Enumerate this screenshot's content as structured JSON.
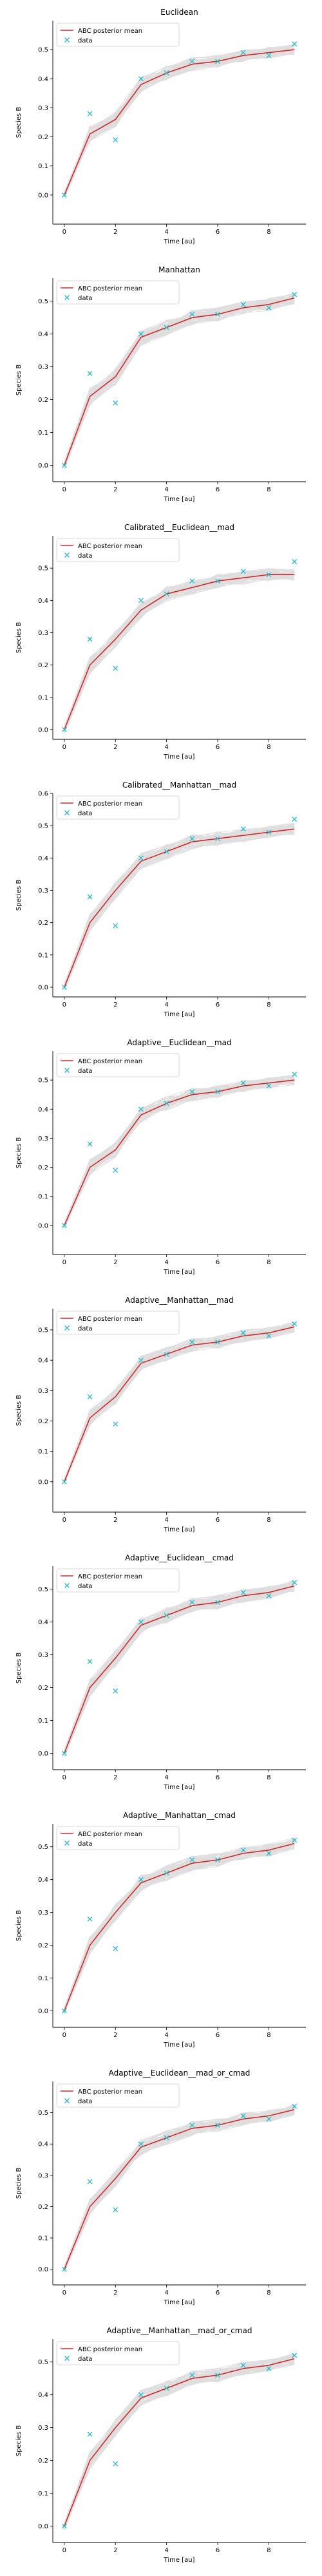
{
  "colors": {
    "mean": "#d62728",
    "data": "#17becf",
    "samples": "#808080",
    "legend_border": "#cccccc",
    "axis": "#000000"
  },
  "chart_data": [
    {
      "type": "line",
      "title": "Euclidean",
      "xlabel": "Time [au]",
      "ylabel": "Species B",
      "xlim": [
        -0.45,
        9.45
      ],
      "ylim": [
        -0.1,
        0.6
      ],
      "xticks": [
        0,
        2,
        4,
        6,
        8
      ],
      "yticks": [
        0.0,
        0.1,
        0.2,
        0.3,
        0.4,
        0.5
      ],
      "grid": false,
      "legend": {
        "position": "top-left",
        "entries": [
          "ABC posterior mean",
          "data"
        ]
      },
      "series": [
        {
          "name": "ABC posterior mean",
          "kind": "line",
          "x": [
            0,
            1,
            2,
            3,
            4,
            5,
            6,
            7,
            8,
            9
          ],
          "y": [
            0.0,
            0.21,
            0.26,
            0.38,
            0.42,
            0.45,
            0.46,
            0.48,
            0.49,
            0.5
          ]
        },
        {
          "name": "data",
          "kind": "scatter",
          "marker": "x",
          "x": [
            0,
            1,
            2,
            3,
            4,
            5,
            6,
            7,
            8,
            9
          ],
          "y": [
            0.0,
            0.28,
            0.19,
            0.4,
            0.42,
            0.46,
            0.46,
            0.49,
            0.48,
            0.52
          ]
        }
      ]
    },
    {
      "type": "line",
      "title": "Manhattan",
      "xlabel": "Time [au]",
      "ylabel": "Species B",
      "xlim": [
        -0.45,
        9.45
      ],
      "ylim": [
        -0.05,
        0.57
      ],
      "xticks": [
        0,
        2,
        4,
        6,
        8
      ],
      "yticks": [
        0.0,
        0.1,
        0.2,
        0.3,
        0.4,
        0.5
      ],
      "grid": false,
      "legend": {
        "position": "top-left",
        "entries": [
          "ABC posterior mean",
          "data"
        ]
      },
      "series": [
        {
          "name": "ABC posterior mean",
          "kind": "line",
          "x": [
            0,
            1,
            2,
            3,
            4,
            5,
            6,
            7,
            8,
            9
          ],
          "y": [
            0.0,
            0.21,
            0.27,
            0.39,
            0.42,
            0.45,
            0.46,
            0.48,
            0.49,
            0.51
          ]
        },
        {
          "name": "data",
          "kind": "scatter",
          "marker": "x",
          "x": [
            0,
            1,
            2,
            3,
            4,
            5,
            6,
            7,
            8,
            9
          ],
          "y": [
            0.0,
            0.28,
            0.19,
            0.4,
            0.42,
            0.46,
            0.46,
            0.49,
            0.48,
            0.52
          ]
        }
      ]
    },
    {
      "type": "line",
      "title": "Calibrated__Euclidean__mad",
      "xlabel": "Time [au]",
      "ylabel": "Species B",
      "xlim": [
        -0.45,
        9.45
      ],
      "ylim": [
        -0.03,
        0.6
      ],
      "xticks": [
        0,
        2,
        4,
        6,
        8
      ],
      "yticks": [
        0.0,
        0.1,
        0.2,
        0.3,
        0.4,
        0.5
      ],
      "grid": false,
      "legend": {
        "position": "top-left",
        "entries": [
          "ABC posterior mean",
          "data"
        ]
      },
      "series": [
        {
          "name": "ABC posterior mean",
          "kind": "line",
          "x": [
            0,
            1,
            2,
            3,
            4,
            5,
            6,
            7,
            8,
            9
          ],
          "y": [
            0.0,
            0.2,
            0.28,
            0.37,
            0.42,
            0.44,
            0.46,
            0.47,
            0.48,
            0.48
          ]
        },
        {
          "name": "data",
          "kind": "scatter",
          "marker": "x",
          "x": [
            0,
            1,
            2,
            3,
            4,
            5,
            6,
            7,
            8,
            9
          ],
          "y": [
            0.0,
            0.28,
            0.19,
            0.4,
            0.42,
            0.46,
            0.46,
            0.49,
            0.48,
            0.52
          ]
        }
      ]
    },
    {
      "type": "line",
      "title": "Calibrated__Manhattan__mad",
      "xlabel": "Time [au]",
      "ylabel": "Species B",
      "xlim": [
        -0.45,
        9.45
      ],
      "ylim": [
        -0.03,
        0.6
      ],
      "xticks": [
        0,
        2,
        4,
        6,
        8
      ],
      "yticks": [
        0.0,
        0.1,
        0.2,
        0.3,
        0.4,
        0.5,
        0.6
      ],
      "grid": false,
      "legend": {
        "position": "top-left",
        "entries": [
          "ABC posterior mean",
          "data"
        ]
      },
      "series": [
        {
          "name": "ABC posterior mean",
          "kind": "line",
          "x": [
            0,
            1,
            2,
            3,
            4,
            5,
            6,
            7,
            8,
            9
          ],
          "y": [
            0.0,
            0.2,
            0.3,
            0.39,
            0.42,
            0.45,
            0.46,
            0.47,
            0.48,
            0.49
          ]
        },
        {
          "name": "data",
          "kind": "scatter",
          "marker": "x",
          "x": [
            0,
            1,
            2,
            3,
            4,
            5,
            6,
            7,
            8,
            9
          ],
          "y": [
            0.0,
            0.28,
            0.19,
            0.4,
            0.42,
            0.46,
            0.46,
            0.49,
            0.48,
            0.52
          ]
        }
      ]
    },
    {
      "type": "line",
      "title": "Adaptive__Euclidean__mad",
      "xlabel": "Time [au]",
      "ylabel": "Species B",
      "xlim": [
        -0.45,
        9.45
      ],
      "ylim": [
        -0.1,
        0.6
      ],
      "xticks": [
        0,
        2,
        4,
        6,
        8
      ],
      "yticks": [
        0.0,
        0.1,
        0.2,
        0.3,
        0.4,
        0.5
      ],
      "grid": false,
      "legend": {
        "position": "top-left",
        "entries": [
          "ABC posterior mean",
          "data"
        ]
      },
      "series": [
        {
          "name": "ABC posterior mean",
          "kind": "line",
          "x": [
            0,
            1,
            2,
            3,
            4,
            5,
            6,
            7,
            8,
            9
          ],
          "y": [
            0.0,
            0.2,
            0.26,
            0.38,
            0.42,
            0.45,
            0.46,
            0.48,
            0.49,
            0.5
          ]
        },
        {
          "name": "data",
          "kind": "scatter",
          "marker": "x",
          "x": [
            0,
            1,
            2,
            3,
            4,
            5,
            6,
            7,
            8,
            9
          ],
          "y": [
            0.0,
            0.28,
            0.19,
            0.4,
            0.42,
            0.46,
            0.46,
            0.49,
            0.48,
            0.52
          ]
        }
      ]
    },
    {
      "type": "line",
      "title": "Adaptive__Manhattan__mad",
      "xlabel": "Time [au]",
      "ylabel": "Species B",
      "xlim": [
        -0.45,
        9.45
      ],
      "ylim": [
        -0.1,
        0.57
      ],
      "xticks": [
        0,
        2,
        4,
        6,
        8
      ],
      "yticks": [
        0.0,
        0.1,
        0.2,
        0.3,
        0.4,
        0.5
      ],
      "grid": false,
      "legend": {
        "position": "top-left",
        "entries": [
          "ABC posterior mean",
          "data"
        ]
      },
      "series": [
        {
          "name": "ABC posterior mean",
          "kind": "line",
          "x": [
            0,
            1,
            2,
            3,
            4,
            5,
            6,
            7,
            8,
            9
          ],
          "y": [
            0.0,
            0.21,
            0.28,
            0.39,
            0.42,
            0.45,
            0.46,
            0.48,
            0.49,
            0.51
          ]
        },
        {
          "name": "data",
          "kind": "scatter",
          "marker": "x",
          "x": [
            0,
            1,
            2,
            3,
            4,
            5,
            6,
            7,
            8,
            9
          ],
          "y": [
            0.0,
            0.28,
            0.19,
            0.4,
            0.42,
            0.46,
            0.46,
            0.49,
            0.48,
            0.52
          ]
        }
      ]
    },
    {
      "type": "line",
      "title": "Adaptive__Euclidean__cmad",
      "xlabel": "Time [au]",
      "ylabel": "Species B",
      "xlim": [
        -0.45,
        9.45
      ],
      "ylim": [
        -0.05,
        0.57
      ],
      "xticks": [
        0,
        2,
        4,
        6,
        8
      ],
      "yticks": [
        0.0,
        0.1,
        0.2,
        0.3,
        0.4,
        0.5
      ],
      "grid": false,
      "legend": {
        "position": "top-left",
        "entries": [
          "ABC posterior mean",
          "data"
        ]
      },
      "series": [
        {
          "name": "ABC posterior mean",
          "kind": "line",
          "x": [
            0,
            1,
            2,
            3,
            4,
            5,
            6,
            7,
            8,
            9
          ],
          "y": [
            0.0,
            0.2,
            0.29,
            0.39,
            0.42,
            0.45,
            0.46,
            0.48,
            0.49,
            0.51
          ]
        },
        {
          "name": "data",
          "kind": "scatter",
          "marker": "x",
          "x": [
            0,
            1,
            2,
            3,
            4,
            5,
            6,
            7,
            8,
            9
          ],
          "y": [
            0.0,
            0.28,
            0.19,
            0.4,
            0.42,
            0.46,
            0.46,
            0.49,
            0.48,
            0.52
          ]
        }
      ]
    },
    {
      "type": "line",
      "title": "Adaptive__Manhattan__cmad",
      "xlabel": "Time [au]",
      "ylabel": "Species B",
      "xlim": [
        -0.45,
        9.45
      ],
      "ylim": [
        -0.05,
        0.57
      ],
      "xticks": [
        0,
        2,
        4,
        6,
        8
      ],
      "yticks": [
        0.0,
        0.1,
        0.2,
        0.3,
        0.4,
        0.5
      ],
      "grid": false,
      "legend": {
        "position": "top-left",
        "entries": [
          "ABC posterior mean",
          "data"
        ]
      },
      "series": [
        {
          "name": "ABC posterior mean",
          "kind": "line",
          "x": [
            0,
            1,
            2,
            3,
            4,
            5,
            6,
            7,
            8,
            9
          ],
          "y": [
            0.0,
            0.2,
            0.3,
            0.39,
            0.42,
            0.45,
            0.46,
            0.48,
            0.49,
            0.51
          ]
        },
        {
          "name": "data",
          "kind": "scatter",
          "marker": "x",
          "x": [
            0,
            1,
            2,
            3,
            4,
            5,
            6,
            7,
            8,
            9
          ],
          "y": [
            0.0,
            0.28,
            0.19,
            0.4,
            0.42,
            0.46,
            0.46,
            0.49,
            0.48,
            0.52
          ]
        }
      ]
    },
    {
      "type": "line",
      "title": "Adaptive__Euclidean__mad_or_cmad",
      "xlabel": "Time [au]",
      "ylabel": "Species B",
      "xlim": [
        -0.45,
        9.45
      ],
      "ylim": [
        -0.05,
        0.6
      ],
      "xticks": [
        0,
        2,
        4,
        6,
        8
      ],
      "yticks": [
        0.0,
        0.1,
        0.2,
        0.3,
        0.4,
        0.5
      ],
      "grid": false,
      "legend": {
        "position": "top-left",
        "entries": [
          "ABC posterior mean",
          "data"
        ]
      },
      "series": [
        {
          "name": "ABC posterior mean",
          "kind": "line",
          "x": [
            0,
            1,
            2,
            3,
            4,
            5,
            6,
            7,
            8,
            9
          ],
          "y": [
            0.0,
            0.2,
            0.29,
            0.39,
            0.42,
            0.45,
            0.46,
            0.48,
            0.49,
            0.51
          ]
        },
        {
          "name": "data",
          "kind": "scatter",
          "marker": "x",
          "x": [
            0,
            1,
            2,
            3,
            4,
            5,
            6,
            7,
            8,
            9
          ],
          "y": [
            0.0,
            0.28,
            0.19,
            0.4,
            0.42,
            0.46,
            0.46,
            0.49,
            0.48,
            0.52
          ]
        }
      ]
    },
    {
      "type": "line",
      "title": "Adaptive__Manhattan__mad_or_cmad",
      "xlabel": "Time [au]",
      "ylabel": "Species B",
      "xlim": [
        -0.45,
        9.45
      ],
      "ylim": [
        -0.05,
        0.57
      ],
      "xticks": [
        0,
        2,
        4,
        6,
        8
      ],
      "yticks": [
        0.0,
        0.1,
        0.2,
        0.3,
        0.4,
        0.5
      ],
      "grid": false,
      "legend": {
        "position": "top-left",
        "entries": [
          "ABC posterior mean",
          "data"
        ]
      },
      "series": [
        {
          "name": "ABC posterior mean",
          "kind": "line",
          "x": [
            0,
            1,
            2,
            3,
            4,
            5,
            6,
            7,
            8,
            9
          ],
          "y": [
            0.0,
            0.2,
            0.3,
            0.39,
            0.42,
            0.45,
            0.46,
            0.48,
            0.49,
            0.51
          ]
        },
        {
          "name": "data",
          "kind": "scatter",
          "marker": "x",
          "x": [
            0,
            1,
            2,
            3,
            4,
            5,
            6,
            7,
            8,
            9
          ],
          "y": [
            0.0,
            0.28,
            0.19,
            0.4,
            0.42,
            0.46,
            0.46,
            0.49,
            0.48,
            0.52
          ]
        }
      ]
    }
  ]
}
